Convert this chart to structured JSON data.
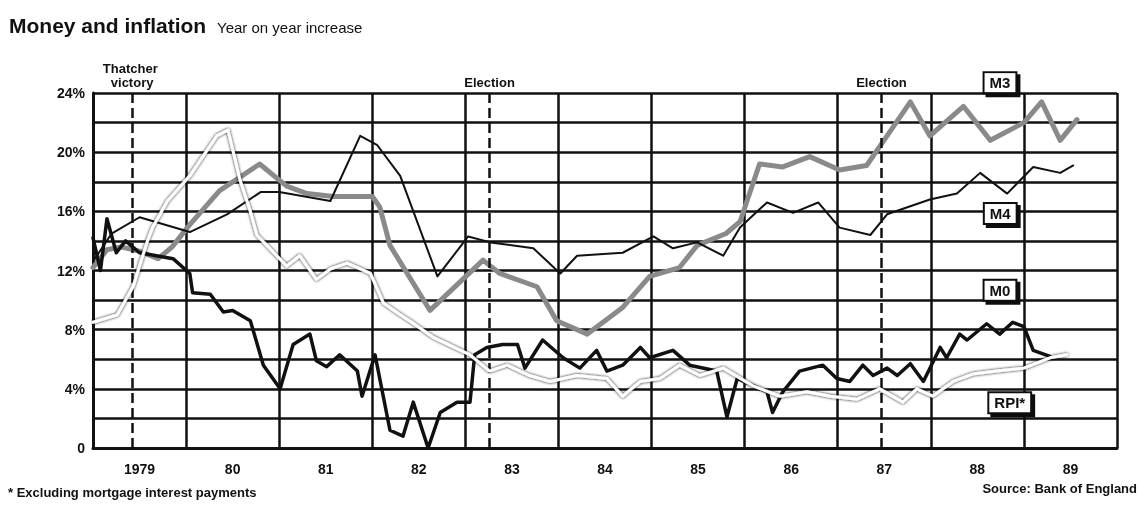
{
  "chart_data": {
    "type": "line",
    "title": "Money and inflation",
    "subtitle": "Year on year increase",
    "xlim": [
      1978.5,
      1989.5
    ],
    "xticks": [
      {
        "value": 1978.5,
        "label": null
      },
      {
        "value": 1979,
        "label": "1979"
      },
      {
        "value": 1979.5,
        "label": null
      },
      {
        "value": 1980,
        "label": "80"
      },
      {
        "value": 1980.5,
        "label": null
      },
      {
        "value": 1981,
        "label": "81"
      },
      {
        "value": 1981.5,
        "label": null
      },
      {
        "value": 1982,
        "label": "82"
      },
      {
        "value": 1982.5,
        "label": null
      },
      {
        "value": 1983,
        "label": "83"
      },
      {
        "value": 1983.5,
        "label": null
      },
      {
        "value": 1984,
        "label": "84"
      },
      {
        "value": 1984.5,
        "label": null
      },
      {
        "value": 1985,
        "label": "85"
      },
      {
        "value": 1985.5,
        "label": null
      },
      {
        "value": 1986,
        "label": "86"
      },
      {
        "value": 1986.5,
        "label": null
      },
      {
        "value": 1987,
        "label": "87"
      },
      {
        "value": 1987.5,
        "label": null
      },
      {
        "value": 1988,
        "label": "88"
      },
      {
        "value": 1988.5,
        "label": null
      },
      {
        "value": 1989,
        "label": "89"
      },
      {
        "value": 1989.5,
        "label": null
      }
    ],
    "ylim": [
      0,
      24
    ],
    "yticks": [
      0,
      {
        "value": 2,
        "label": null
      },
      {
        "value": 4,
        "label": "4%"
      },
      {
        "value": 6,
        "label": null
      },
      {
        "value": 8,
        "label": "8%"
      },
      {
        "value": 10,
        "label": null
      },
      {
        "value": 12,
        "label": "12%"
      },
      {
        "value": 14,
        "label": null
      },
      {
        "value": 16,
        "label": "16%"
      },
      {
        "value": 18,
        "label": null
      },
      {
        "value": 20,
        "label": "20%"
      },
      {
        "value": 22,
        "label": null
      },
      {
        "value": 24,
        "label": "24%"
      }
    ],
    "grid": true,
    "marker": "none",
    "legend": false,
    "series": [
      {
        "name": "M3",
        "color": "#8a8a8a",
        "x": [
          1978.5,
          1978.65,
          1978.8,
          1979.0,
          1979.2,
          1979.35,
          1979.54,
          1979.86,
          1980.29,
          1980.58,
          1980.8,
          1981.08,
          1981.5,
          1981.58,
          1981.69,
          1982.12,
          1982.69,
          1982.87,
          1983.27,
          1983.48,
          1983.81,
          1984.19,
          1984.48,
          1984.8,
          1984.99,
          1985.3,
          1985.45,
          1985.66,
          1985.91,
          1986.2,
          1986.52,
          1986.81,
          1987.03,
          1987.28,
          1987.49,
          1987.85,
          1988.14,
          1988.5,
          1988.69,
          1988.89,
          1989.07
        ],
        "values": [
          12.2,
          13.4,
          13.6,
          13.3,
          12.8,
          13.6,
          15.1,
          17.4,
          19.2,
          17.7,
          17.2,
          17.0,
          17.0,
          16.3,
          13.7,
          9.3,
          12.7,
          11.8,
          10.9,
          8.6,
          7.7,
          9.5,
          11.6,
          12.2,
          13.7,
          14.5,
          15.3,
          19.2,
          19.0,
          19.7,
          18.8,
          19.1,
          21.1,
          23.4,
          21.1,
          23.1,
          20.8,
          22.0,
          23.4,
          20.8,
          22.2
        ]
      },
      {
        "name": "M4",
        "color": "#111111",
        "x": [
          1978.5,
          1978.7,
          1979.0,
          1979.54,
          1979.94,
          1980.3,
          1980.5,
          1981.05,
          1981.37,
          1981.55,
          1981.8,
          1982.2,
          1982.53,
          1982.77,
          1983.23,
          1983.52,
          1983.7,
          1984.19,
          1984.52,
          1984.73,
          1984.99,
          1985.27,
          1985.45,
          1985.74,
          1986.02,
          1986.29,
          1986.52,
          1986.85,
          1987.03,
          1987.49,
          1987.78,
          1988.03,
          1988.32,
          1988.6,
          1988.89,
          1989.03
        ],
        "values": [
          12.6,
          14.5,
          15.6,
          14.6,
          15.8,
          17.3,
          17.3,
          16.7,
          21.1,
          20.5,
          18.4,
          11.6,
          14.3,
          13.9,
          13.5,
          11.8,
          13.0,
          13.2,
          14.3,
          13.5,
          13.9,
          13.0,
          14.9,
          16.6,
          15.9,
          16.6,
          14.9,
          14.4,
          15.8,
          16.8,
          17.2,
          18.6,
          17.2,
          19.0,
          18.6,
          19.1
        ]
      },
      {
        "name": "M0",
        "color": "#111111",
        "x": [
          1978.5,
          1978.58,
          1978.65,
          1978.75,
          1978.85,
          1979.0,
          1979.36,
          1979.54,
          1979.57,
          1979.76,
          1979.9,
          1980.0,
          1980.19,
          1980.33,
          1980.51,
          1980.65,
          1980.83,
          1980.9,
          1981.01,
          1981.15,
          1981.34,
          1981.39,
          1981.53,
          1981.69,
          1981.83,
          1981.94,
          1982.1,
          1982.23,
          1982.41,
          1982.55,
          1982.6,
          1982.73,
          1982.9,
          1983.06,
          1983.14,
          1983.33,
          1983.55,
          1983.73,
          1983.91,
          1984.02,
          1984.19,
          1984.38,
          1984.48,
          1984.73,
          1984.91,
          1985.2,
          1985.31,
          1985.42,
          1985.74,
          1985.8,
          1985.91,
          1986.09,
          1986.34,
          1986.49,
          1986.63,
          1986.77,
          1986.88,
          1987.03,
          1987.14,
          1987.28,
          1987.42,
          1987.6,
          1987.67,
          1987.81,
          1987.89,
          1988.1,
          1988.24,
          1988.38,
          1988.5,
          1988.6,
          1988.78
        ],
        "values": [
          14.2,
          12.0,
          15.5,
          13.2,
          14.0,
          13.2,
          12.8,
          11.8,
          10.5,
          10.4,
          9.2,
          9.3,
          8.6,
          5.6,
          4.0,
          7.0,
          7.7,
          5.9,
          5.5,
          6.3,
          5.2,
          3.5,
          6.3,
          1.2,
          0.8,
          3.1,
          0.0,
          2.4,
          3.1,
          3.1,
          6.3,
          6.8,
          7.0,
          7.0,
          5.4,
          7.3,
          6.1,
          5.4,
          6.6,
          5.2,
          5.6,
          6.8,
          6.1,
          6.6,
          5.6,
          5.2,
          2.1,
          4.7,
          3.8,
          2.4,
          3.8,
          5.2,
          5.6,
          4.7,
          4.5,
          5.6,
          4.9,
          5.4,
          4.9,
          5.7,
          4.5,
          6.8,
          6.1,
          7.7,
          7.3,
          8.4,
          7.7,
          8.5,
          8.2,
          6.6,
          6.2
        ]
      },
      {
        "name": "RPI*",
        "color": "#ffffff",
        "x": [
          1978.5,
          1978.76,
          1978.93,
          1979.08,
          1979.14,
          1979.3,
          1979.54,
          1979.83,
          1979.95,
          1980.08,
          1980.19,
          1980.26,
          1980.58,
          1980.72,
          1980.9,
          1981.05,
          1981.23,
          1981.48,
          1981.62,
          1981.78,
          1981.9,
          1982.15,
          1982.55,
          1982.76,
          1982.95,
          1983.19,
          1983.41,
          1983.7,
          1984.02,
          1984.19,
          1984.38,
          1984.59,
          1984.8,
          1985.02,
          1985.27,
          1985.59,
          1985.88,
          1986.17,
          1986.42,
          1986.71,
          1986.95,
          1987.2,
          1987.35,
          1987.52,
          1987.74,
          1987.95,
          1988.21,
          1988.5,
          1988.78,
          1988.96
        ],
        "values": [
          8.5,
          9.0,
          10.9,
          13.9,
          14.9,
          16.7,
          18.4,
          21.1,
          21.5,
          18.1,
          16.0,
          14.4,
          12.3,
          13.0,
          11.4,
          12.1,
          12.5,
          11.8,
          9.8,
          9.1,
          8.6,
          7.5,
          6.3,
          5.2,
          5.6,
          4.9,
          4.5,
          4.9,
          4.7,
          3.5,
          4.5,
          4.7,
          5.6,
          4.9,
          5.4,
          4.2,
          3.5,
          3.8,
          3.5,
          3.3,
          4.0,
          3.1,
          4.0,
          3.5,
          4.5,
          5.0,
          5.2,
          5.4,
          6.1,
          6.3
        ]
      }
    ],
    "ref_lines": [
      {
        "axis": "x",
        "value": 1978.92,
        "label": "Thatcher victory",
        "line_style": "dashed",
        "color": "#111111"
      },
      {
        "axis": "x",
        "value": 1982.76,
        "label": "Election",
        "line_style": "dashed",
        "color": "#111111"
      },
      {
        "axis": "x",
        "value": 1986.97,
        "label": "Election",
        "line_style": "dashed",
        "color": "#111111"
      }
    ],
    "annotations": [
      "* Excluding mortgage interest payments",
      "Source: Bank of England"
    ]
  }
}
